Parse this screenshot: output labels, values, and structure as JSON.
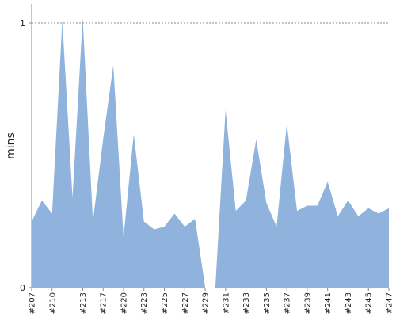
{
  "chart_data": {
    "type": "area",
    "title": "",
    "xlabel": "",
    "ylabel": "mins",
    "ylim": [
      0,
      1
    ],
    "y_ticks": [
      0,
      1
    ],
    "y_tick_labels": [
      "0",
      "1"
    ],
    "reference_line": {
      "value": 1,
      "style": "dotted"
    },
    "grid": false,
    "colors": {
      "series_fill": "#8fb3dc",
      "gap_fill": "#bdbdbd",
      "axis": "#888888",
      "reference_line": "#888888"
    },
    "x": [
      "#207",
      "#209",
      "#210",
      "#211",
      "#212",
      "#213",
      "#215",
      "#217",
      "#218",
      "#220",
      "#221",
      "#223",
      "#224",
      "#225",
      "#226",
      "#227",
      "#228",
      "#229",
      "#230",
      "#231",
      "#232",
      "#233",
      "#234",
      "#235",
      "#236",
      "#237",
      "#238",
      "#239",
      "#240",
      "#241",
      "#242",
      "#243",
      "#244",
      "#245",
      "#246",
      "#247"
    ],
    "x_tick_labels": [
      "#207",
      "#210",
      "#213",
      "#217",
      "#220",
      "#223",
      "#225",
      "#227",
      "#229",
      "#231",
      "#233",
      "#235",
      "#237",
      "#239",
      "#241",
      "#243",
      "#245",
      "#247"
    ],
    "series": [
      {
        "values": [
          0.25,
          0.33,
          0.28,
          1.01,
          0.34,
          1.02,
          0.25,
          0.56,
          0.84,
          0.19,
          0.58,
          0.25,
          0.22,
          0.23,
          0.28,
          0.23,
          0.26,
          0.0,
          0.0,
          0.67,
          0.29,
          0.33,
          0.56,
          0.32,
          0.23,
          0.62,
          0.29,
          0.31,
          0.31,
          0.4,
          0.27,
          0.33,
          0.27,
          0.3,
          0.28,
          0.3
        ]
      }
    ],
    "gap_series": {
      "values": [
        0,
        0,
        0,
        0,
        0,
        0,
        0,
        0,
        0,
        0,
        0,
        0,
        0,
        0,
        0,
        0,
        0.26,
        0.0,
        0.0,
        0.67,
        0,
        0,
        0,
        0,
        0,
        0,
        0,
        0,
        0,
        0,
        0,
        0,
        0,
        0,
        0,
        0
      ]
    }
  }
}
